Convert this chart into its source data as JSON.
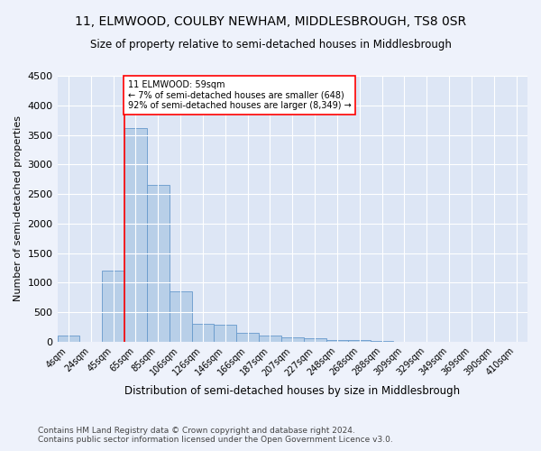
{
  "title": "11, ELMWOOD, COULBY NEWHAM, MIDDLESBROUGH, TS8 0SR",
  "subtitle": "Size of property relative to semi-detached houses in Middlesbrough",
  "xlabel": "Distribution of semi-detached houses by size in Middlesbrough",
  "ylabel": "Number of semi-detached properties",
  "categories": [
    "4sqm",
    "24sqm",
    "45sqm",
    "65sqm",
    "85sqm",
    "106sqm",
    "126sqm",
    "146sqm",
    "166sqm",
    "187sqm",
    "207sqm",
    "227sqm",
    "248sqm",
    "268sqm",
    "288sqm",
    "309sqm",
    "329sqm",
    "349sqm",
    "369sqm",
    "390sqm",
    "410sqm"
  ],
  "values": [
    100,
    0,
    1200,
    3620,
    2650,
    850,
    300,
    280,
    150,
    100,
    75,
    55,
    30,
    20,
    5,
    0,
    0,
    0,
    0,
    0,
    0
  ],
  "bar_color": "#b8cfe8",
  "bar_edge_color": "#6699cc",
  "redline_label": "11 ELMWOOD: 59sqm",
  "annotation_line1": "← 7% of semi-detached houses are smaller (648)",
  "annotation_line2": "92% of semi-detached houses are larger (8,349) →",
  "ylim": [
    0,
    4500
  ],
  "yticks": [
    0,
    500,
    1000,
    1500,
    2000,
    2500,
    3000,
    3500,
    4000,
    4500
  ],
  "footer1": "Contains HM Land Registry data © Crown copyright and database right 2024.",
  "footer2": "Contains public sector information licensed under the Open Government Licence v3.0.",
  "bg_color": "#eef2fb",
  "plot_bg_color": "#dde6f5"
}
